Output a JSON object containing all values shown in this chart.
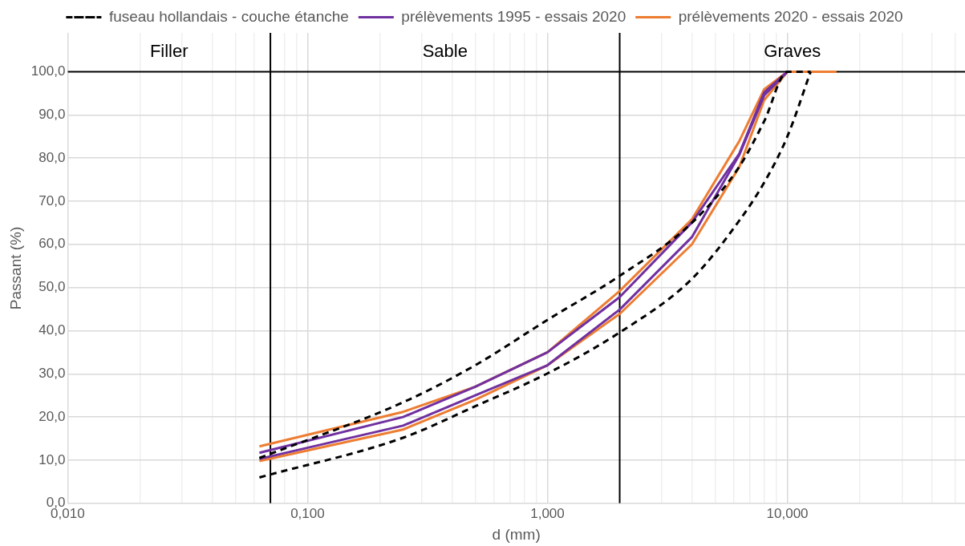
{
  "chart_data": {
    "type": "line",
    "log": "x",
    "grid": true,
    "legend": "top",
    "marker": "none",
    "xlabel": "d (mm)",
    "ylabel": "Passant (%)",
    "xlim": [
      0.01,
      55
    ],
    "ylim": [
      0,
      109
    ],
    "xticks": [
      {
        "value": 0.01,
        "label": "0,010"
      },
      {
        "value": 0.02,
        "label": null
      },
      {
        "value": 0.03,
        "label": null
      },
      {
        "value": 0.04,
        "label": null
      },
      {
        "value": 0.05,
        "label": null
      },
      {
        "value": 0.06,
        "label": null
      },
      {
        "value": 0.08,
        "label": null
      },
      {
        "value": 0.09,
        "label": null
      },
      {
        "value": 0.1,
        "label": "0,100"
      },
      {
        "value": 0.2,
        "label": null
      },
      {
        "value": 0.3,
        "label": null
      },
      {
        "value": 0.4,
        "label": null
      },
      {
        "value": 0.5,
        "label": null
      },
      {
        "value": 0.6,
        "label": null
      },
      {
        "value": 0.7,
        "label": null
      },
      {
        "value": 0.8,
        "label": null
      },
      {
        "value": 0.9,
        "label": null
      },
      {
        "value": 1,
        "label": "1,000"
      },
      {
        "value": 3,
        "label": null
      },
      {
        "value": 4,
        "label": null
      },
      {
        "value": 5,
        "label": null
      },
      {
        "value": 6,
        "label": null
      },
      {
        "value": 7,
        "label": null
      },
      {
        "value": 8,
        "label": null
      },
      {
        "value": 9,
        "label": null
      },
      {
        "value": 10,
        "label": "10,000"
      },
      {
        "value": 20,
        "label": null
      },
      {
        "value": 30,
        "label": null
      },
      {
        "value": 40,
        "label": null
      },
      {
        "value": 50,
        "label": null
      }
    ],
    "yticks": [
      {
        "value": 0,
        "label": "0,0"
      },
      {
        "value": 10,
        "label": "10,0"
      },
      {
        "value": 20,
        "label": "20,0"
      },
      {
        "value": 30,
        "label": "30,0"
      },
      {
        "value": 40,
        "label": "40,0"
      },
      {
        "value": 50,
        "label": "50,0"
      },
      {
        "value": 60,
        "label": "60,0"
      },
      {
        "value": 70,
        "label": "70,0"
      },
      {
        "value": 80,
        "label": "80,0"
      },
      {
        "value": 90,
        "label": "90,0"
      },
      {
        "value": 100,
        "label": "100,0"
      }
    ],
    "ref_lines": [
      {
        "axis": "x",
        "value": 0.07,
        "color": "#000000"
      },
      {
        "axis": "x",
        "value": 2,
        "color": "#000000"
      },
      {
        "axis": "y",
        "value": 100,
        "color": "#000000"
      }
    ],
    "annotations": [
      "Filler",
      "Sable",
      "Graves"
    ],
    "series": [
      {
        "name": "fuseau hollandais - couche étanche",
        "color": "#000000",
        "line_style": "dashed",
        "x": [
          0.063,
          0.25,
          0.5,
          1,
          2,
          4,
          6.3,
          8,
          10,
          12.5
        ],
        "values": [
          10.5,
          23.4,
          32,
          42.5,
          52.7,
          65,
          78,
          88.5,
          100,
          100
        ]
      },
      {
        "color": "#000000",
        "line_style": "dashed",
        "x": [
          0.063,
          0.25,
          0.5,
          1,
          2,
          4,
          6.3,
          8,
          10,
          12.5
        ],
        "values": [
          6,
          15.2,
          22.5,
          30.1,
          39.6,
          52,
          65.5,
          74.3,
          85,
          100
        ]
      },
      {
        "name": "prélèvements 1995 - essais 2020",
        "color": "#7030a0",
        "x": [
          0.063,
          0.25,
          0.5,
          1,
          2,
          4,
          6.3,
          8,
          10
        ],
        "values": [
          11.7,
          20,
          27,
          35,
          47.8,
          65.1,
          81,
          95.2,
          100
        ]
      },
      {
        "color": "#7030a0",
        "x": [
          0.063,
          0.25,
          0.5,
          1,
          2,
          4,
          6.3,
          8,
          10
        ],
        "values": [
          10.3,
          18,
          25,
          32,
          44.9,
          61.7,
          80.7,
          94.5,
          100
        ]
      },
      {
        "name": "prélèvements 2020 - essais 2020",
        "color": "#ed7d31",
        "x": [
          0.063,
          0.25,
          0.5,
          1,
          2,
          4,
          6.3,
          8,
          10,
          16
        ],
        "values": [
          13.2,
          21.2,
          27,
          35,
          49.2,
          65.8,
          83.9,
          95.9,
          100,
          100
        ]
      },
      {
        "color": "#ed7d31",
        "x": [
          0.063,
          0.25,
          0.5,
          1,
          2,
          4,
          6.3,
          8,
          10,
          16
        ],
        "values": [
          9.8,
          17.1,
          24,
          32,
          43.9,
          60,
          77.9,
          93.4,
          100,
          100
        ]
      }
    ]
  }
}
